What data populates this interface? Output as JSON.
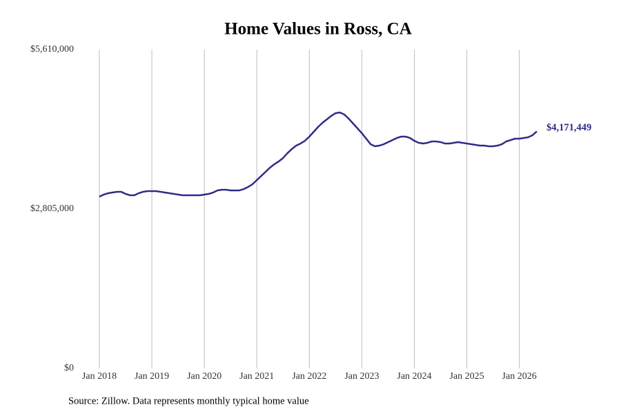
{
  "chart_data": {
    "type": "line",
    "title": "Home Values in Ross, CA",
    "source": "Source: Zillow. Data represents monthly typical home value",
    "x": [
      "2018-01",
      "2018-02",
      "2018-03",
      "2018-04",
      "2018-05",
      "2018-06",
      "2018-07",
      "2018-08",
      "2018-09",
      "2018-10",
      "2018-11",
      "2018-12",
      "2019-01",
      "2019-02",
      "2019-03",
      "2019-04",
      "2019-05",
      "2019-06",
      "2019-07",
      "2019-08",
      "2019-09",
      "2019-10",
      "2019-11",
      "2019-12",
      "2020-01",
      "2020-02",
      "2020-03",
      "2020-04",
      "2020-05",
      "2020-06",
      "2020-07",
      "2020-08",
      "2020-09",
      "2020-10",
      "2020-11",
      "2020-12",
      "2021-01",
      "2021-02",
      "2021-03",
      "2021-04",
      "2021-05",
      "2021-06",
      "2021-07",
      "2021-08",
      "2021-09",
      "2021-10",
      "2021-11",
      "2021-12",
      "2022-01",
      "2022-02",
      "2022-03",
      "2022-04",
      "2022-05",
      "2022-06",
      "2022-07",
      "2022-08",
      "2022-09",
      "2022-10",
      "2022-11",
      "2022-12",
      "2023-01",
      "2023-02",
      "2023-03",
      "2023-04",
      "2023-05",
      "2023-06",
      "2023-07",
      "2023-08",
      "2023-09",
      "2023-10",
      "2023-11",
      "2023-12",
      "2024-01",
      "2024-02",
      "2024-03",
      "2024-04",
      "2024-05",
      "2024-06",
      "2024-07",
      "2024-08",
      "2024-09",
      "2024-10",
      "2024-11",
      "2024-12",
      "2025-01",
      "2025-02",
      "2025-03",
      "2025-04",
      "2025-05",
      "2025-06",
      "2025-07",
      "2025-08",
      "2025-09",
      "2025-10",
      "2025-11",
      "2025-12",
      "2026-01",
      "2026-02",
      "2026-03",
      "2026-04",
      "2026-05"
    ],
    "series": [
      {
        "name": "Ross, CA",
        "color": "#2e2c87",
        "values": [
          3024000,
          3060000,
          3084000,
          3096000,
          3109000,
          3109000,
          3072000,
          3048000,
          3048000,
          3084000,
          3109000,
          3121000,
          3121000,
          3121000,
          3109000,
          3096000,
          3084000,
          3072000,
          3060000,
          3048000,
          3048000,
          3048000,
          3048000,
          3048000,
          3060000,
          3072000,
          3096000,
          3133000,
          3145000,
          3145000,
          3133000,
          3133000,
          3133000,
          3157000,
          3194000,
          3242000,
          3315000,
          3388000,
          3461000,
          3534000,
          3594000,
          3643000,
          3704000,
          3789000,
          3861000,
          3922000,
          3959000,
          4007000,
          4080000,
          4165000,
          4250000,
          4323000,
          4384000,
          4444000,
          4493000,
          4505000,
          4469000,
          4396000,
          4311000,
          4226000,
          4141000,
          4044000,
          3946000,
          3910000,
          3922000,
          3946000,
          3983000,
          4019000,
          4056000,
          4080000,
          4080000,
          4056000,
          4007000,
          3971000,
          3959000,
          3971000,
          3995000,
          3995000,
          3983000,
          3959000,
          3959000,
          3971000,
          3983000,
          3971000,
          3959000,
          3946000,
          3934000,
          3922000,
          3922000,
          3910000,
          3910000,
          3922000,
          3946000,
          3995000,
          4019000,
          4044000,
          4044000,
          4056000,
          4068000,
          4104000,
          4171449
        ],
        "end_label": "$4,171,449"
      }
    ],
    "ylim": [
      0,
      5610000
    ],
    "yticks": [
      {
        "value": 0,
        "label": "$0"
      },
      {
        "value": 2805000,
        "label": "$2,805,000"
      },
      {
        "value": 5610000,
        "label": "$5,610,000"
      }
    ],
    "xticks": [
      {
        "value": "2018-01",
        "label": "Jan 2018"
      },
      {
        "value": "2019-01",
        "label": "Jan 2019"
      },
      {
        "value": "2020-01",
        "label": "Jan 2020"
      },
      {
        "value": "2021-01",
        "label": "Jan 2021"
      },
      {
        "value": "2022-01",
        "label": "Jan 2022"
      },
      {
        "value": "2023-01",
        "label": "Jan 2023"
      },
      {
        "value": "2024-01",
        "label": "Jan 2024"
      },
      {
        "value": "2025-01",
        "label": "Jan 2025"
      },
      {
        "value": "2026-01",
        "label": "Jan 2026"
      }
    ],
    "grid": "x"
  }
}
